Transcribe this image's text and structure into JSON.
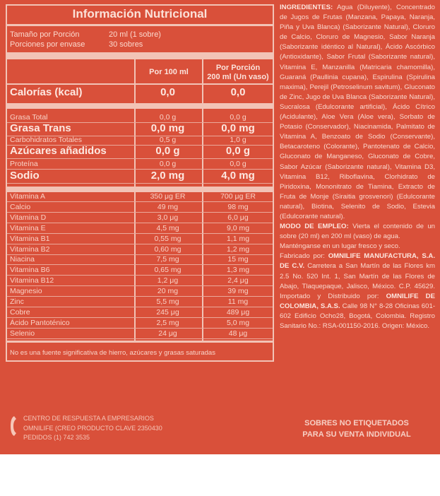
{
  "table": {
    "title": "Información Nutricional",
    "serving_size_label": "Tamaño por Porción",
    "serving_size_value": "20 ml (1 sobre)",
    "servings_label": "Porciones por envase",
    "servings_value": "30 sobres",
    "col1_header": "Por 100 ml",
    "col2_header_line1": "Por Porción",
    "col2_header_line2": "200 ml (Un vaso)",
    "calories": {
      "label": "Calorías (kcal)",
      "v1": "0,0",
      "v2": "0,0"
    },
    "fats": [
      {
        "label": "Grasa Total",
        "v1": "0,0 g",
        "v2": "0,0 g",
        "style": "small"
      },
      {
        "label": "Grasa Trans",
        "v1": "0,0 mg",
        "v2": "0,0 mg",
        "style": "sub"
      },
      {
        "label": "Carbohidratos Totales",
        "v1": "0,5 g",
        "v2": "1,0 g",
        "style": "small"
      },
      {
        "label": "Azúcares añadidos",
        "v1": "0,0 g",
        "v2": "0,0 g",
        "style": "sub"
      },
      {
        "label": "Proteína",
        "v1": "0,0 g",
        "v2": "0,0 g",
        "style": "small"
      },
      {
        "label": "Sodio",
        "v1": "2,0 mg",
        "v2": "4,0 mg",
        "style": "big"
      }
    ],
    "vitamins": [
      {
        "label": "Vitamina A",
        "v1": "350 μg ER",
        "v2": "700 μg ER"
      },
      {
        "label": "Calcio",
        "v1": "49 mg",
        "v2": "98 mg"
      },
      {
        "label": "Vitamina D",
        "v1": "3,0 μg",
        "v2": "6,0 μg"
      },
      {
        "label": "Vitamina E",
        "v1": "4,5 mg",
        "v2": "9,0 mg"
      },
      {
        "label": "Vitamina B1",
        "v1": "0,55 mg",
        "v2": "1,1 mg"
      },
      {
        "label": "Vitamina B2",
        "v1": "0,60 mg",
        "v2": "1,2 mg"
      },
      {
        "label": "Niacina",
        "v1": "7,5 mg",
        "v2": "15 mg"
      },
      {
        "label": "Vitamina B6",
        "v1": "0,65 mg",
        "v2": "1,3 mg"
      },
      {
        "label": "Vitamina B12",
        "v1": "1,2 μg",
        "v2": "2,4 μg"
      },
      {
        "label": "Magnesio",
        "v1": "20 mg",
        "v2": "39 mg"
      },
      {
        "label": "Zinc",
        "v1": "5,5 mg",
        "v2": "11 mg"
      },
      {
        "label": "Cobre",
        "v1": "245 μg",
        "v2": "489 μg"
      },
      {
        "label": "Ácido Pantoténico",
        "v1": "2,5 mg",
        "v2": "5,0 mg"
      },
      {
        "label": "Selenio",
        "v1": "24 μg",
        "v2": "48 μg"
      }
    ],
    "footnote": "No es una fuente significativa de hierro, azúcares y grasas saturadas"
  },
  "ingredients": {
    "heading": "INGREDIENTES:",
    "text": "Agua (Diluyente), Concentrado de Jugos de Frutas (Manzana, Papaya, Naranja, Piña y Uva Blanca) (Saborizante Natural), Cloruro de Calcio, Cloruro de Magnesio, Sabor Naranja (Saborizante idéntico al Natural), Ácido Ascórbico (Antioxidante), Sabor Frutal (Saborizante natural), Vitamina E, Manzanilla (Matricaria chamomilla), Guaraná (Paullinia cupana), Espirulina (Spirulina maxima), Perejil (Petroselinum savitum), Gluconato de Zinc, Jugo de Uva Blanca (Saborizante Natural), Sucralosa (Edulcorante artificial), Ácido Cítrico (Acidulante), Aloe Vera (Aloe vera), Sorbato de Potasio (Conservador), Niacinamida, Palmitato de Vitamina A, Benzoato de Sodio (Conservante), Betacaroteno (Colorante), Pantotenato de Calcio, Gluconato de Manganeso, Gluconato de Cobre, Sabor Azúcar (Saborizante natural), Vitamina D3, Vitamina B12, Riboflavina, Clorhidrato de Piridoxina, Mononitrato de Tiamina, Extracto de Fruta de Monje (Siraitia grosvenori) (Edulcorante natural), Biotina, Selenito de Sodio, Estevia (Edulcorante natural).",
    "usage_heading": "MODO DE EMPLEO:",
    "usage_text": "Vierta el contenido de un sobre (20 ml) en 200 ml (vaso) de agua.",
    "storage": "Manténganse en un lugar fresco y seco.",
    "manufacturer_prefix": "Fabricado por:",
    "manufacturer_name": "OMNILIFE MANUFACTURA, S.A. DE C.V.",
    "manufacturer_address": "Carretera a San Martín de las Flores km 2.5 No. 520 Int. 1, San Martín de las Flores de Abajo, Tlaquepaque, Jalisco, México. C.P. 45629. Importado y Distribuido por:",
    "importer_name": "OMNILIFE DE COLOMBIA, S.A.S.",
    "importer_address": "Calle 98 N° 8-28 Oficinas 601-602 Edificio Ocho28, Bogotá, Colombia. Registro Sanitario No.: RSA-001150-2016. Origen: México."
  },
  "contact": {
    "line1": "CENTRO DE RESPUESTA A EMPRESARIOS",
    "line2": "OMNILIFE (CREO PRODUCTO CLAVE 2350430",
    "line3": "PEDIDOS (1) 742  3535"
  },
  "notice": {
    "line1": "SOBRES NO ETIQUETADOS",
    "line2": "PARA SU VENTA INDIVIDUAL"
  },
  "colors": {
    "background": "#d9503a",
    "table_lines": "#f2c3b6",
    "text": "#fbe3dc"
  }
}
